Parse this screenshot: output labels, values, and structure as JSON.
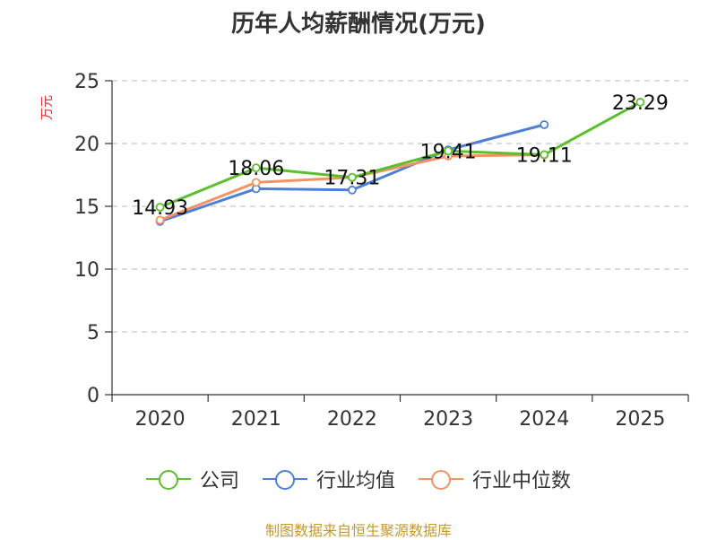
{
  "chart_data": {
    "type": "line",
    "title": "历年人均薪酬情况(万元)",
    "ylabel": "万元",
    "categories": [
      "2020",
      "2021",
      "2022",
      "2023",
      "2024",
      "2025"
    ],
    "ylim": [
      0,
      25
    ],
    "yticks": [
      0,
      5,
      10,
      15,
      20,
      25
    ],
    "grid": true,
    "legend_position": "bottom",
    "series": [
      {
        "name": "公司",
        "color": "#5bbf2e",
        "values": [
          14.93,
          18.06,
          17.31,
          19.41,
          19.11,
          23.29
        ],
        "labels": [
          "14.93",
          "18.06",
          "17.31",
          "19.41",
          "19.11",
          "23.29"
        ]
      },
      {
        "name": "行业均值",
        "color": "#4f7fd6",
        "values": [
          13.8,
          16.4,
          16.3,
          19.5,
          21.5,
          null
        ]
      },
      {
        "name": "行业中位数",
        "color": "#f39264",
        "values": [
          13.9,
          16.9,
          17.3,
          19.0,
          19.1,
          null
        ]
      }
    ]
  },
  "source": "制图数据来自恒生聚源数据库"
}
